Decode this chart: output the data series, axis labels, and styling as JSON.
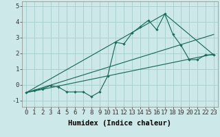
{
  "xlabel": "Humidex (Indice chaleur)",
  "ylabel": "",
  "bg_color": "#cce8e8",
  "grid_color": "#aad0d0",
  "line_color": "#1a6b5a",
  "ylim": [
    -1.4,
    5.3
  ],
  "xlim": [
    -0.5,
    23.5
  ],
  "series1_x": [
    0,
    1,
    2,
    3,
    4,
    5,
    6,
    7,
    8,
    9,
    10,
    11,
    12,
    13,
    14,
    15,
    16,
    17,
    18,
    19,
    20,
    21,
    22,
    23
  ],
  "series1_y": [
    -0.5,
    -0.35,
    -0.25,
    -0.05,
    -0.15,
    -0.45,
    -0.45,
    -0.45,
    -0.75,
    -0.45,
    0.55,
    2.7,
    2.6,
    3.3,
    3.7,
    4.1,
    3.5,
    4.5,
    3.2,
    2.5,
    1.6,
    1.6,
    1.9,
    1.9
  ],
  "series2_x": [
    0,
    23
  ],
  "series2_y": [
    -0.5,
    1.95
  ],
  "series3_x": [
    0,
    17,
    23
  ],
  "series3_y": [
    -0.5,
    4.5,
    1.9
  ],
  "series4_x": [
    0,
    23
  ],
  "series4_y": [
    -0.5,
    3.2
  ],
  "ytick_vals": [
    -1,
    0,
    1,
    2,
    3,
    4,
    5
  ],
  "label_fontsize": 7.5,
  "tick_fontsize": 6.5
}
